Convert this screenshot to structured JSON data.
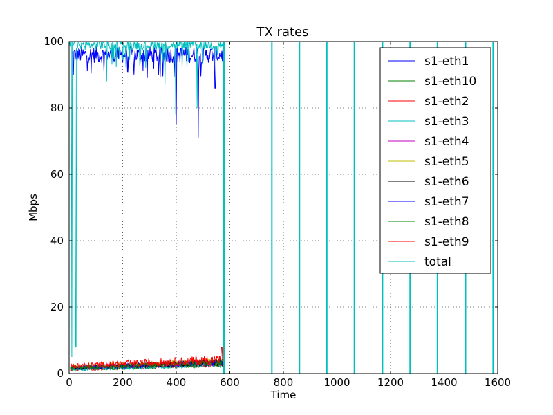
{
  "chart_data": {
    "type": "line",
    "title": "TX rates",
    "xlabel": "Time",
    "ylabel": "Mbps",
    "xlim": [
      0,
      1600
    ],
    "ylim": [
      0,
      100
    ],
    "xticks": [
      0,
      200,
      400,
      600,
      800,
      1000,
      1200,
      1400,
      1600
    ],
    "yticks": [
      0,
      20,
      40,
      60,
      80,
      100
    ],
    "grid": true,
    "legend_position": "upper right",
    "series": [
      {
        "name": "s1-eth1",
        "color": "#0000ff",
        "style": "noisy",
        "base": 96,
        "amp": 2.5,
        "start": 10,
        "end": 575,
        "dips": [
          [
            400,
            75
          ],
          [
            482,
            71
          ],
          [
            545,
            86
          ],
          [
            15,
            90
          ]
        ]
      },
      {
        "name": "s1-eth10",
        "color": "#008000",
        "style": "noisy",
        "base": 0.8,
        "amp": 0.8,
        "start": 5,
        "end": 575,
        "dips": []
      },
      {
        "name": "s1-eth2",
        "color": "#ff0000",
        "style": "noisy",
        "base": 0.8,
        "amp": 0.8,
        "start": 5,
        "end": 575,
        "dips": []
      },
      {
        "name": "s1-eth3",
        "color": "#00bfbf",
        "style": "noisy",
        "base": 0.8,
        "amp": 0.8,
        "start": 5,
        "end": 575,
        "dips": []
      },
      {
        "name": "s1-eth4",
        "color": "#bf00bf",
        "style": "noisy",
        "base": 1.2,
        "amp": 1.0,
        "start": 5,
        "end": 575,
        "dips": []
      },
      {
        "name": "s1-eth5",
        "color": "#bfbf00",
        "style": "noisy",
        "base": 1.5,
        "amp": 1.0,
        "start": 5,
        "end": 575,
        "dips": []
      },
      {
        "name": "s1-eth6",
        "color": "#000000",
        "style": "noisy",
        "base": 1.2,
        "amp": 1.0,
        "start": 5,
        "end": 575,
        "dips": []
      },
      {
        "name": "s1-eth7",
        "color": "#0000ff",
        "style": "noisy",
        "base": 1.2,
        "amp": 1.0,
        "start": 5,
        "end": 575,
        "dips": []
      },
      {
        "name": "s1-eth8",
        "color": "#008000",
        "style": "noisy",
        "base": 1.2,
        "amp": 1.0,
        "start": 5,
        "end": 575,
        "dips": []
      },
      {
        "name": "s1-eth9",
        "color": "#ff0000",
        "style": "noisy",
        "base": 1.5,
        "amp": 1.5,
        "start": 5,
        "end": 575,
        "dips": [],
        "peak": [
          570,
          8
        ]
      },
      {
        "name": "total",
        "color": "#00bfbf",
        "style": "total",
        "base": 99,
        "amp": 1.5,
        "start": 0,
        "end": 578,
        "dips": [
          [
            10,
            5
          ],
          [
            25,
            8
          ],
          [
            140,
            88
          ],
          [
            358,
            87
          ],
          [
            398,
            78
          ],
          [
            478,
            80
          ],
          [
            555,
            96
          ]
        ],
        "spikes": [
          578,
          757,
          860,
          962,
          1065,
          1170,
          1273,
          1375,
          1480,
          1583
        ]
      }
    ]
  }
}
